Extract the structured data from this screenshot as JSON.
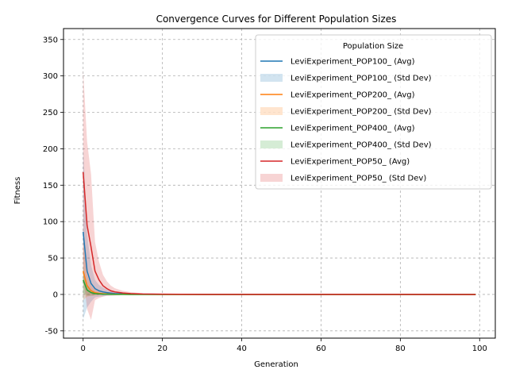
{
  "chart_data": {
    "type": "line",
    "title": "Convergence Curves for Different Population Sizes",
    "xlabel": "Generation",
    "ylabel": "Fitness",
    "xlim": [
      -4.95,
      103.95
    ],
    "ylim": [
      -60,
      365
    ],
    "x_ticks": [
      0,
      20,
      40,
      60,
      80,
      100
    ],
    "y_ticks": [
      -50,
      0,
      50,
      100,
      150,
      200,
      250,
      300,
      350
    ],
    "grid": true,
    "legend": {
      "title": "Population Size",
      "placement": "top-right"
    },
    "x": [
      0,
      1,
      2,
      3,
      4,
      5,
      6,
      7,
      8,
      10,
      12,
      15,
      20,
      30,
      50,
      99
    ],
    "series": [
      {
        "name": "LeviExperiment_POP100_",
        "avg_label": "LeviExperiment_POP100_ (Avg)",
        "std_label": "LeviExperiment_POP100_ (Std Dev)",
        "color": "#1f77b4",
        "avg": [
          86,
          32,
          15,
          8,
          5,
          3.5,
          2.5,
          1.8,
          1.2,
          0.8,
          0.5,
          0.3,
          0.2,
          0.1,
          0.05,
          0
        ],
        "std": [
          120,
          50,
          25,
          12,
          8,
          6,
          4,
          3,
          2,
          1.5,
          1,
          0.6,
          0.3,
          0.2,
          0.1,
          0
        ]
      },
      {
        "name": "LeviExperiment_POP200_",
        "avg_label": "LeviExperiment_POP200_ (Avg)",
        "std_label": "LeviExperiment_POP200_ (Std Dev)",
        "color": "#ff7f0e",
        "avg": [
          32,
          12,
          5,
          2.5,
          1.5,
          1,
          0.7,
          0.5,
          0.3,
          0.2,
          0.1,
          0.05,
          0,
          0,
          0,
          0
        ],
        "std": [
          40,
          15,
          7,
          4,
          2.5,
          1.5,
          1,
          0.8,
          0.5,
          0.3,
          0.2,
          0.1,
          0,
          0,
          0,
          0
        ]
      },
      {
        "name": "LeviExperiment_POP400_",
        "avg_label": "LeviExperiment_POP400_ (Avg)",
        "std_label": "LeviExperiment_POP400_ (Std Dev)",
        "color": "#2ca02c",
        "avg": [
          20,
          6,
          2.5,
          1.2,
          0.7,
          0.4,
          0.3,
          0.2,
          0.1,
          0.05,
          0,
          0,
          0,
          0,
          0,
          0
        ],
        "std": [
          18,
          8,
          4,
          2,
          1,
          0.6,
          0.4,
          0.3,
          0.2,
          0.1,
          0,
          0,
          0,
          0,
          0,
          0
        ]
      },
      {
        "name": "LeviExperiment_POP50_",
        "avg_label": "LeviExperiment_POP50_ (Avg)",
        "std_label": "LeviExperiment_POP50_ (Std Dev)",
        "color": "#d62728",
        "avg": [
          168,
          95,
          65,
          32,
          20,
          12,
          8,
          5,
          3.5,
          2,
          1.2,
          0.6,
          0.3,
          0.1,
          0.05,
          0
        ],
        "std": [
          140,
          115,
          100,
          40,
          25,
          15,
          10,
          7,
          5,
          3,
          2,
          1,
          0.5,
          0.2,
          0.1,
          0
        ]
      }
    ]
  }
}
